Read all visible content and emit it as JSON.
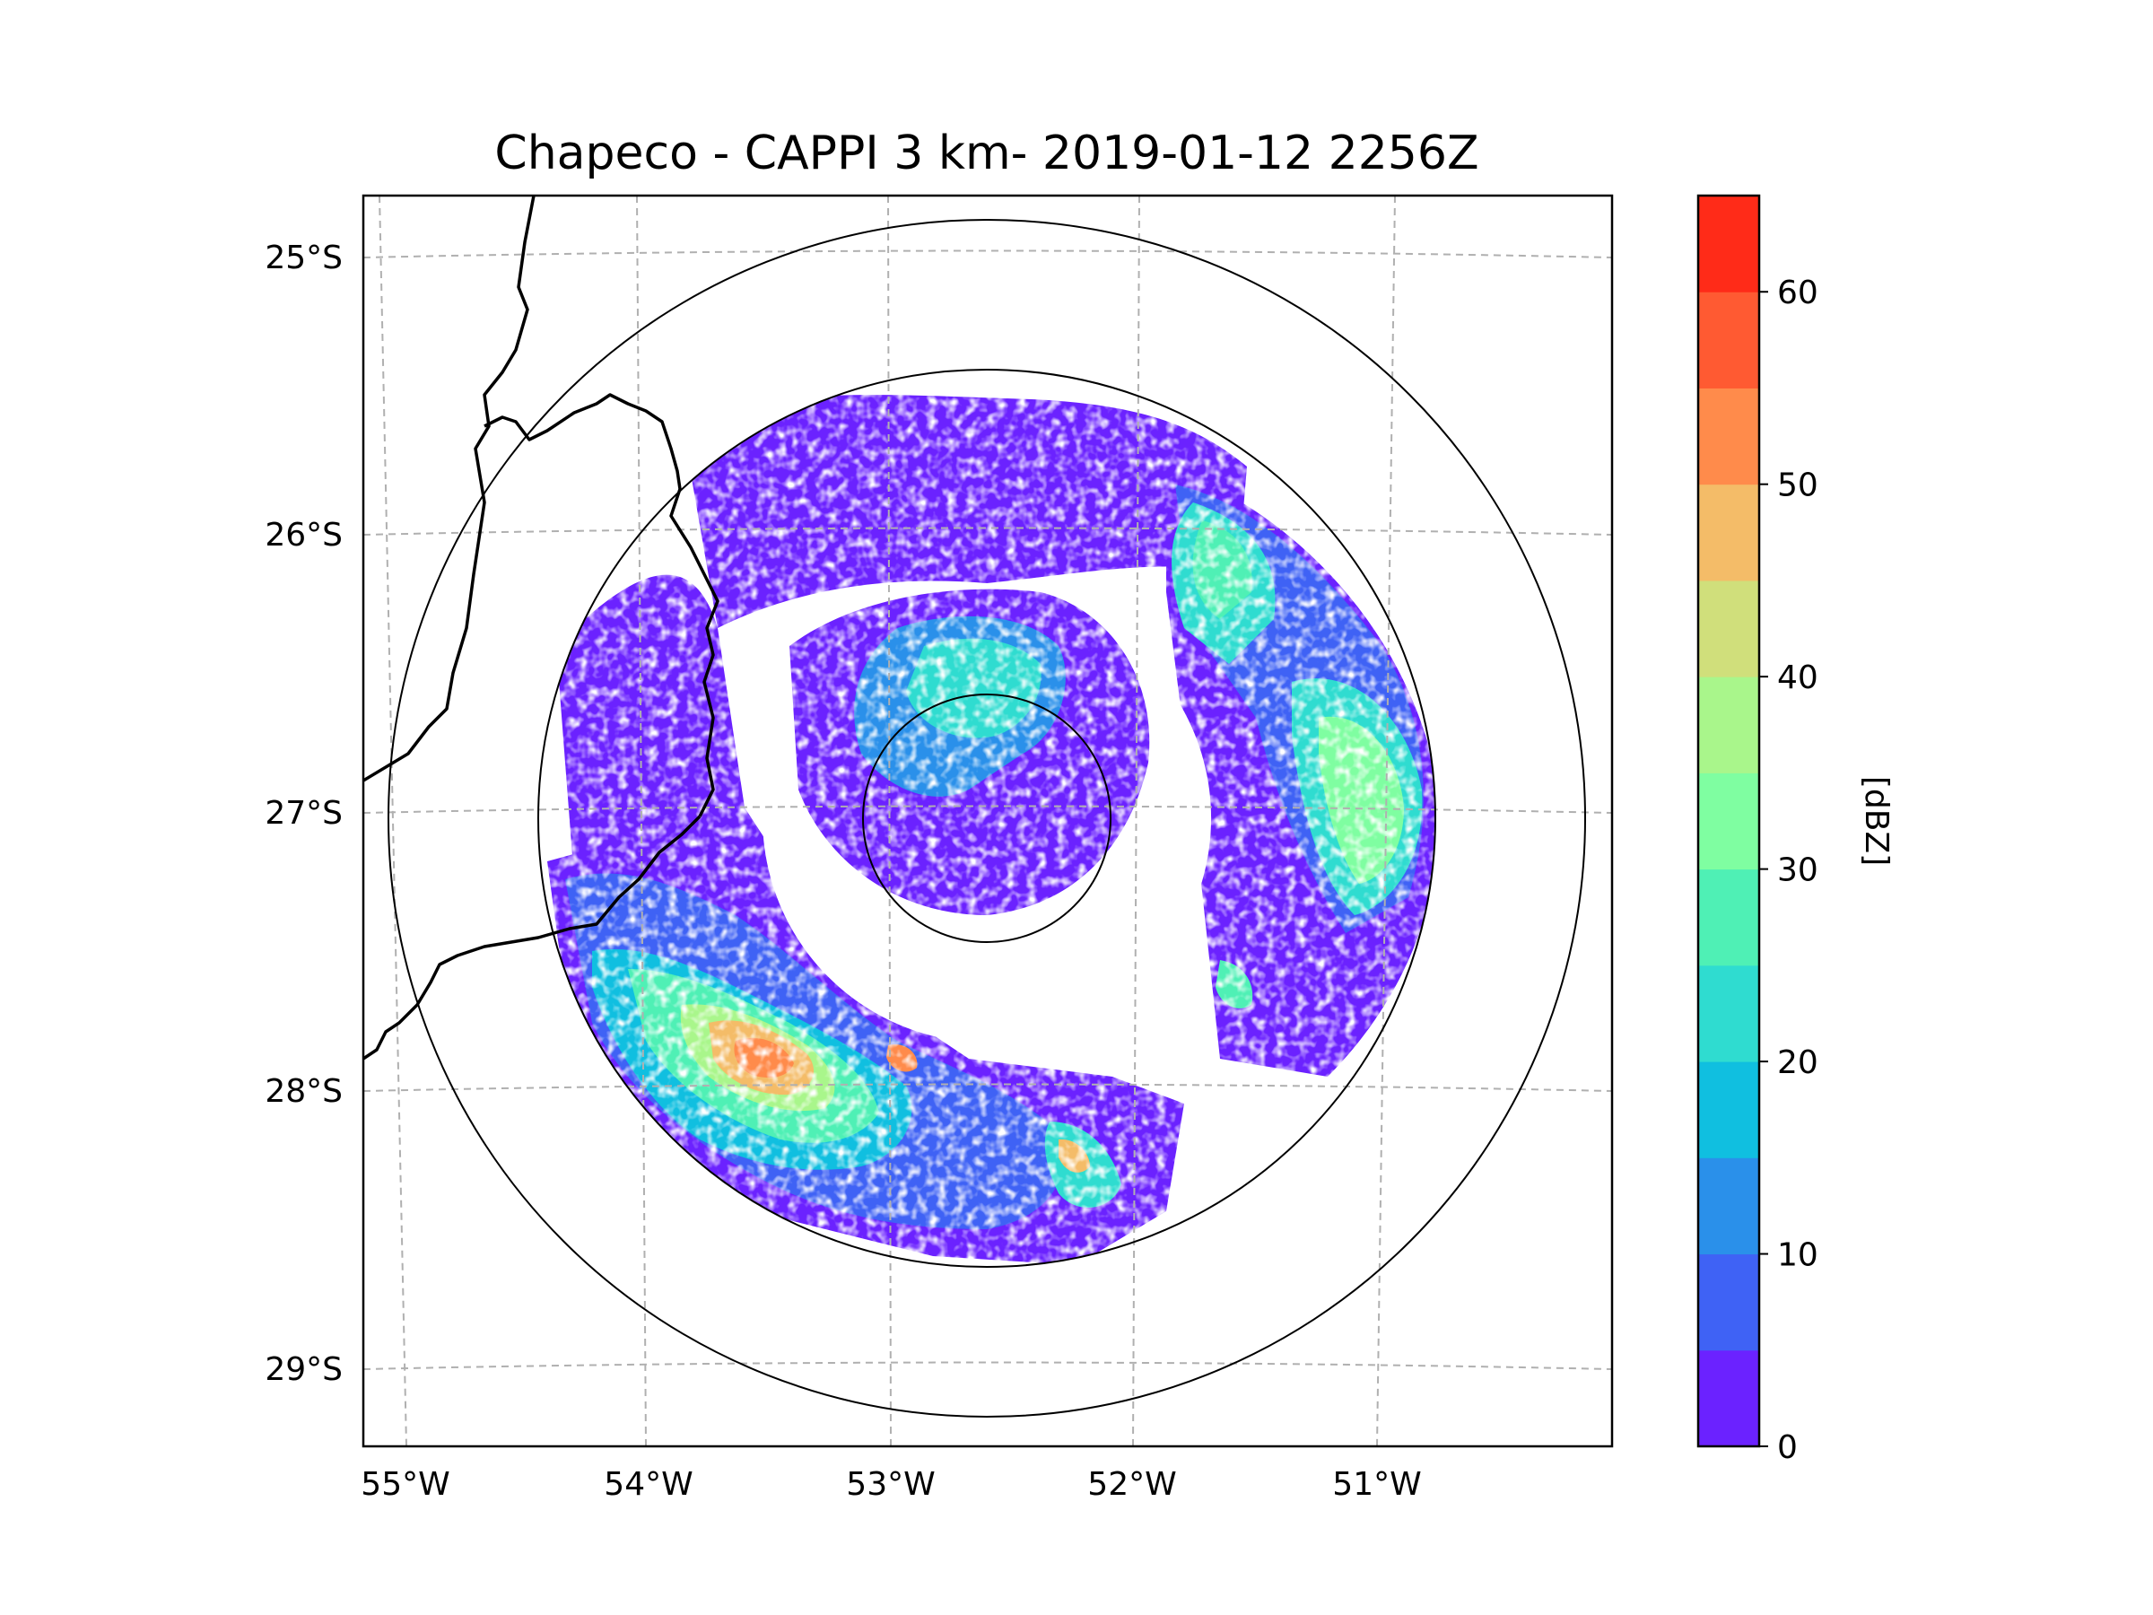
{
  "chart_data": {
    "type": "heatmap",
    "title": "Chapeco - CAPPI 3 km- 2019-01-12 2256Z",
    "projection": "azimuthal equidistant, radar-centred",
    "x_ticks": [
      "55°W",
      "54°W",
      "53°W",
      "52°W",
      "51°W"
    ],
    "x_tick_values": [
      -55,
      -54,
      -53,
      -52,
      -51
    ],
    "y_ticks": [
      "25°S",
      "26°S",
      "27°S",
      "28°S",
      "29°S"
    ],
    "y_tick_values": [
      -25,
      -26,
      -27,
      -28,
      -29
    ],
    "xlim": [
      -55.17,
      -50.05
    ],
    "ylim": [
      -29.28,
      -24.78
    ],
    "grid": true,
    "range_rings_km": [
      50,
      150,
      250
    ],
    "radar_site": {
      "name": "Chapeco",
      "lon": -52.6,
      "lat": -27.05
    },
    "colorbar": {
      "label": "[dBZ]",
      "ticks": [
        "0",
        "10",
        "20",
        "30",
        "40",
        "50",
        "60"
      ],
      "tick_values": [
        0,
        10,
        20,
        30,
        40,
        50,
        60
      ],
      "range": [
        0,
        65
      ],
      "levels": [
        0,
        5,
        10,
        15,
        20,
        25,
        30,
        35,
        40,
        45,
        50,
        55,
        60,
        65
      ],
      "colors": [
        "#6b22ff",
        "#3f62f5",
        "#2a90ea",
        "#10bfe0",
        "#2fdcd0",
        "#4ff0b5",
        "#7ffea1",
        "#a9f68b",
        "#d0df7b",
        "#f4bc68",
        "#ff8b4b",
        "#ff5a32",
        "#ff2b18"
      ]
    },
    "echo_regions": [
      {
        "name": "southwest-storm-core",
        "value_dbz": 52,
        "lon": -53.4,
        "lat": -28.0
      },
      {
        "name": "south-cell",
        "value_dbz": 48,
        "lon": -52.9,
        "lat": -27.95
      },
      {
        "name": "east-band",
        "value_dbz": 35,
        "lon": -51.0,
        "lat": -27.1
      },
      {
        "name": "northeast-band",
        "value_dbz": 30,
        "lon": -51.8,
        "lat": -26.4
      },
      {
        "name": "central-ring",
        "value_dbz": 20,
        "lon": -52.7,
        "lat": -26.8
      }
    ]
  }
}
